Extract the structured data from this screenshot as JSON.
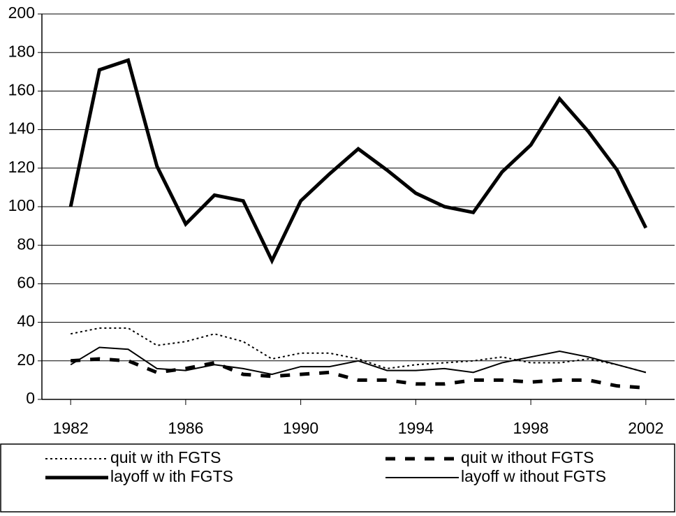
{
  "chart_data": {
    "type": "line",
    "x": [
      1982,
      1983,
      1984,
      1985,
      1986,
      1987,
      1988,
      1989,
      1990,
      1991,
      1992,
      1993,
      1994,
      1995,
      1996,
      1997,
      1998,
      1999,
      2000,
      2001,
      2002
    ],
    "xlim": [
      1981,
      2003
    ],
    "xticks": [
      1982,
      1986,
      1990,
      1994,
      1998,
      2002
    ],
    "ylim": [
      0,
      200
    ],
    "yticks": [
      0,
      20,
      40,
      60,
      80,
      100,
      120,
      140,
      160,
      180,
      200
    ],
    "grid": true,
    "legend": "bottom",
    "series": [
      {
        "name": "quit w ith FGTS",
        "color": "#000000",
        "style": "dotted",
        "width": 2,
        "values": [
          34,
          37,
          37,
          28,
          30,
          34,
          30,
          21,
          24,
          24,
          21,
          16,
          18,
          19,
          20,
          22,
          19,
          19,
          21,
          18,
          14
        ]
      },
      {
        "name": "quit w ithout FGTS",
        "color": "#000000",
        "style": "dashed",
        "width": 5,
        "values": [
          20,
          21,
          20,
          14,
          16,
          19,
          13,
          12,
          13,
          14,
          10,
          10,
          8,
          8,
          10,
          10,
          9,
          10,
          10,
          7,
          6
        ]
      },
      {
        "name": "layoff w ith FGTS",
        "color": "#000000",
        "style": "solid",
        "width": 5,
        "values": [
          100,
          171,
          176,
          121,
          91,
          106,
          103,
          72,
          103,
          117,
          130,
          119,
          107,
          100,
          97,
          118,
          132,
          156,
          139,
          119,
          89
        ]
      },
      {
        "name": "layoff w ithout FGTS",
        "color": "#000000",
        "style": "solid",
        "width": 2,
        "values": [
          18,
          27,
          26,
          16,
          15,
          18,
          16,
          13,
          17,
          17,
          20,
          15,
          15,
          16,
          14,
          19,
          22,
          25,
          22,
          18,
          14
        ]
      }
    ]
  }
}
